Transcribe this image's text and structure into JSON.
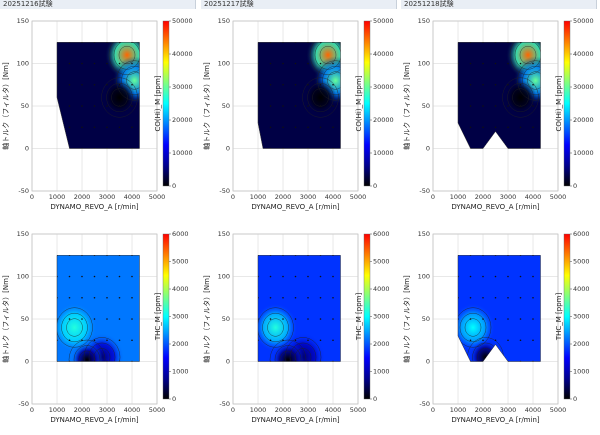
{
  "tabs": [
    {
      "label": "20251216試験"
    },
    {
      "label": "20251217試験"
    },
    {
      "label": "20251218試験"
    }
  ],
  "colors": {
    "scale": [
      "#000000",
      "#00008f",
      "#0000ff",
      "#007fff",
      "#00ffff",
      "#7fff7f",
      "#ffff00",
      "#ff7f00",
      "#ff0000"
    ],
    "grid": "#d0d0d0",
    "axis": "#555555"
  },
  "chart_data": [
    {
      "type": "heatmap",
      "panel": 1,
      "xlabel": "DYNAMO_REVO_A [r/min]",
      "ylabel": "軸トルク（フィルタ）[Nm]",
      "colorbar_label": "CO(Hi)_M [ppm]",
      "xlim": [
        0,
        5000
      ],
      "ylim": [
        -50,
        150
      ],
      "xticks": [
        "0",
        "1000",
        "2000",
        "3000",
        "4000",
        "5000"
      ],
      "yticks": [
        "-50",
        "0",
        "50",
        "100",
        "150"
      ],
      "cbar_range": [
        0,
        50000
      ],
      "cbar_ticks": [
        "50000",
        "40000",
        "30000",
        "20000",
        "10000",
        "0"
      ],
      "region": [
        [
          1000,
          125
        ],
        [
          4300,
          125
        ],
        [
          4300,
          0
        ],
        [
          1500,
          0
        ],
        [
          1000,
          60
        ]
      ],
      "hot_spots": [
        {
          "x": 3800,
          "y": 110,
          "value": 45000
        },
        {
          "x": 4100,
          "y": 80,
          "value": 30000
        }
      ],
      "base_value": 3000,
      "cold_spots": [
        {
          "x": 3500,
          "y": 60,
          "value": 0
        }
      ]
    },
    {
      "type": "heatmap",
      "panel": 2,
      "xlabel": "DYNAMO_REVO_A [r/min]",
      "ylabel": "軸トルク（フィルタ）[Nm]",
      "colorbar_label": "CO(Hi)_M [ppm]",
      "xlim": [
        0,
        5000
      ],
      "ylim": [
        -50,
        150
      ],
      "xticks": [
        "0",
        "1000",
        "2000",
        "3000",
        "4000",
        "5000"
      ],
      "yticks": [
        "-50",
        "0",
        "50",
        "100",
        "150"
      ],
      "cbar_range": [
        0,
        50000
      ],
      "cbar_ticks": [
        "50000",
        "40000",
        "30000",
        "20000",
        "10000",
        "0"
      ],
      "region": [
        [
          1000,
          125
        ],
        [
          4300,
          125
        ],
        [
          4300,
          0
        ],
        [
          1200,
          0
        ],
        [
          1000,
          30
        ]
      ],
      "hot_spots": [
        {
          "x": 3800,
          "y": 110,
          "value": 45000
        },
        {
          "x": 4100,
          "y": 80,
          "value": 30000
        }
      ],
      "base_value": 3000,
      "cold_spots": [
        {
          "x": 3500,
          "y": 60,
          "value": 0
        }
      ]
    },
    {
      "type": "heatmap",
      "panel": 3,
      "xlabel": "DYNAMO_REVO_A [r/min]",
      "ylabel": "軸トルク（フィルタ）[Nm]",
      "colorbar_label": "CO(Hi)_M [ppm]",
      "xlim": [
        0,
        5000
      ],
      "ylim": [
        -50,
        150
      ],
      "xticks": [
        "0",
        "1000",
        "2000",
        "3000",
        "4000",
        "5000"
      ],
      "yticks": [
        "-50",
        "0",
        "50",
        "100",
        "150"
      ],
      "cbar_range": [
        0,
        50000
      ],
      "cbar_ticks": [
        "50000",
        "40000",
        "30000",
        "20000",
        "10000",
        "0"
      ],
      "region": [
        [
          1000,
          125
        ],
        [
          4300,
          125
        ],
        [
          4300,
          0
        ],
        [
          3000,
          0
        ],
        [
          2500,
          20
        ],
        [
          2000,
          0
        ],
        [
          1500,
          0
        ],
        [
          1000,
          30
        ]
      ],
      "hot_spots": [
        {
          "x": 3800,
          "y": 110,
          "value": 45000
        },
        {
          "x": 4100,
          "y": 80,
          "value": 30000
        }
      ],
      "base_value": 3000,
      "cold_spots": [
        {
          "x": 3500,
          "y": 60,
          "value": 0
        }
      ]
    },
    {
      "type": "heatmap",
      "panel": 4,
      "xlabel": "DYNAMO_REVO_A [r/min]",
      "ylabel": "軸トルク（フィルタ）[Nm]",
      "colorbar_label": "THC_M [ppm]",
      "xlim": [
        0,
        5000
      ],
      "ylim": [
        -50,
        150
      ],
      "xticks": [
        "0",
        "1000",
        "2000",
        "3000",
        "4000",
        "5000"
      ],
      "yticks": [
        "-50",
        "0",
        "50",
        "100",
        "150"
      ],
      "cbar_range": [
        0,
        6000
      ],
      "cbar_ticks": [
        "6000",
        "5000",
        "4000",
        "3000",
        "2000",
        "1000",
        "0"
      ],
      "region": [
        [
          1000,
          125
        ],
        [
          4300,
          125
        ],
        [
          4300,
          0
        ],
        [
          1000,
          0
        ]
      ],
      "hot_spots": [
        {
          "x": 1700,
          "y": 40,
          "value": 3200
        },
        {
          "x": 2800,
          "y": 5,
          "value": 600
        }
      ],
      "base_value": 2200,
      "cold_spots": [
        {
          "x": 2200,
          "y": 2,
          "value": 0
        }
      ]
    },
    {
      "type": "heatmap",
      "panel": 5,
      "xlabel": "DYNAMO_REVO_A [r/min]",
      "ylabel": "軸トルク（フィルタ）[Nm]",
      "colorbar_label": "THC_M [ppm]",
      "xlim": [
        0,
        5000
      ],
      "ylim": [
        -50,
        150
      ],
      "xticks": [
        "0",
        "1000",
        "2000",
        "3000",
        "4000",
        "5000"
      ],
      "yticks": [
        "-50",
        "0",
        "50",
        "100",
        "150"
      ],
      "cbar_range": [
        0,
        6000
      ],
      "cbar_ticks": [
        "6000",
        "5000",
        "4000",
        "3000",
        "2000",
        "1000",
        "0"
      ],
      "region": [
        [
          1000,
          125
        ],
        [
          4300,
          125
        ],
        [
          4300,
          0
        ],
        [
          1000,
          0
        ]
      ],
      "hot_spots": [
        {
          "x": 1700,
          "y": 40,
          "value": 3200
        },
        {
          "x": 2800,
          "y": 5,
          "value": 600
        }
      ],
      "base_value": 1800,
      "cold_spots": [
        {
          "x": 2200,
          "y": 2,
          "value": 0
        }
      ]
    },
    {
      "type": "heatmap",
      "panel": 6,
      "xlabel": "DYNAMO_REVO_A [r/min]",
      "ylabel": "軸トルク（フィルタ）[Nm]",
      "colorbar_label": "THC_M [ppm]",
      "xlim": [
        0,
        5000
      ],
      "ylim": [
        -50,
        150
      ],
      "xticks": [
        "0",
        "1000",
        "2000",
        "3000",
        "4000",
        "5000"
      ],
      "yticks": [
        "-50",
        "0",
        "50",
        "100",
        "150"
      ],
      "cbar_range": [
        0,
        6000
      ],
      "cbar_ticks": [
        "6000",
        "5000",
        "4000",
        "3000",
        "2000",
        "1000",
        "0"
      ],
      "region": [
        [
          1000,
          125
        ],
        [
          4300,
          125
        ],
        [
          4300,
          0
        ],
        [
          3000,
          0
        ],
        [
          2500,
          20
        ],
        [
          2000,
          0
        ],
        [
          1500,
          0
        ],
        [
          1000,
          30
        ]
      ],
      "hot_spots": [
        {
          "x": 1600,
          "y": 40,
          "value": 3000
        }
      ],
      "base_value": 1800,
      "cold_spots": [
        {
          "x": 2100,
          "y": 5,
          "value": 0
        }
      ]
    }
  ]
}
